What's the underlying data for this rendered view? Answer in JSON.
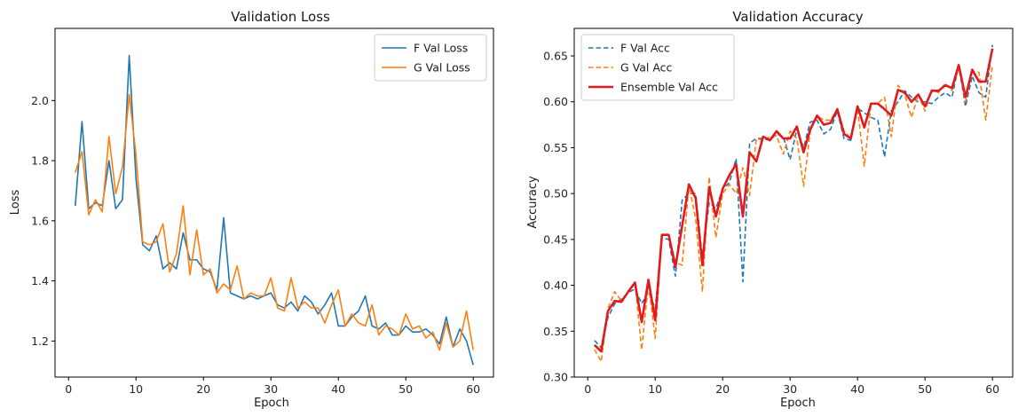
{
  "chart_data": [
    {
      "type": "line",
      "title": "Validation Loss",
      "xlabel": "Epoch",
      "ylabel": "Loss",
      "xlim": [
        -2,
        63
      ],
      "ylim": [
        1.08,
        2.24
      ],
      "xticks": [
        0,
        10,
        20,
        30,
        40,
        50,
        60
      ],
      "yticks": [
        1.2,
        1.4,
        1.6,
        1.8,
        2.0
      ],
      "ytick_decimals": 1,
      "grid": false,
      "legend": "top-right",
      "x": [
        1,
        2,
        3,
        4,
        5,
        6,
        7,
        8,
        9,
        10,
        11,
        12,
        13,
        14,
        15,
        16,
        17,
        18,
        19,
        20,
        21,
        22,
        23,
        24,
        25,
        26,
        27,
        28,
        29,
        30,
        31,
        32,
        33,
        34,
        35,
        36,
        37,
        38,
        39,
        40,
        41,
        42,
        43,
        44,
        45,
        46,
        47,
        48,
        49,
        50,
        51,
        52,
        53,
        54,
        55,
        56,
        57,
        58,
        59,
        60
      ],
      "series": [
        {
          "name": "F Val Loss",
          "color": "#1f77b4",
          "style": "solid",
          "width": 1.6,
          "values": [
            1.65,
            1.93,
            1.64,
            1.66,
            1.65,
            1.8,
            1.64,
            1.67,
            2.15,
            1.74,
            1.52,
            1.5,
            1.55,
            1.44,
            1.46,
            1.44,
            1.56,
            1.47,
            1.47,
            1.44,
            1.43,
            1.37,
            1.61,
            1.36,
            1.35,
            1.34,
            1.35,
            1.34,
            1.35,
            1.36,
            1.32,
            1.31,
            1.33,
            1.3,
            1.35,
            1.33,
            1.29,
            1.32,
            1.36,
            1.25,
            1.25,
            1.28,
            1.3,
            1.35,
            1.25,
            1.24,
            1.26,
            1.22,
            1.22,
            1.25,
            1.23,
            1.23,
            1.24,
            1.22,
            1.19,
            1.28,
            1.18,
            1.24,
            1.2,
            1.12
          ]
        },
        {
          "name": "G Val Loss",
          "color": "#ff7f0e",
          "style": "solid",
          "width": 1.6,
          "values": [
            1.76,
            1.83,
            1.62,
            1.67,
            1.63,
            1.88,
            1.69,
            1.78,
            2.02,
            1.82,
            1.53,
            1.52,
            1.53,
            1.59,
            1.43,
            1.49,
            1.65,
            1.42,
            1.57,
            1.42,
            1.44,
            1.36,
            1.39,
            1.37,
            1.45,
            1.34,
            1.36,
            1.35,
            1.35,
            1.41,
            1.31,
            1.3,
            1.41,
            1.31,
            1.33,
            1.31,
            1.31,
            1.26,
            1.32,
            1.37,
            1.25,
            1.29,
            1.26,
            1.25,
            1.32,
            1.22,
            1.25,
            1.24,
            1.22,
            1.29,
            1.24,
            1.25,
            1.21,
            1.23,
            1.17,
            1.26,
            1.18,
            1.2,
            1.3,
            1.17
          ]
        }
      ]
    },
    {
      "type": "line",
      "title": "Validation Accuracy",
      "xlabel": "Epoch",
      "ylabel": "Accuracy",
      "xlim": [
        -2,
        63
      ],
      "ylim": [
        0.3,
        0.68
      ],
      "xticks": [
        0,
        10,
        20,
        30,
        40,
        50,
        60
      ],
      "yticks": [
        0.3,
        0.35,
        0.4,
        0.45,
        0.5,
        0.55,
        0.6,
        0.65
      ],
      "ytick_decimals": 2,
      "grid": false,
      "legend": "top-left",
      "x": [
        1,
        2,
        3,
        4,
        5,
        6,
        7,
        8,
        9,
        10,
        11,
        12,
        13,
        14,
        15,
        16,
        17,
        18,
        19,
        20,
        21,
        22,
        23,
        24,
        25,
        26,
        27,
        28,
        29,
        30,
        31,
        32,
        33,
        34,
        35,
        36,
        37,
        38,
        39,
        40,
        41,
        42,
        43,
        44,
        45,
        46,
        47,
        48,
        49,
        50,
        51,
        52,
        53,
        54,
        55,
        56,
        57,
        58,
        59,
        60
      ],
      "series": [
        {
          "name": "F Val Acc",
          "color": "#1f77b4",
          "style": "dashed",
          "width": 1.6,
          "values": [
            0.34,
            0.332,
            0.365,
            0.38,
            0.385,
            0.392,
            0.396,
            0.38,
            0.393,
            0.375,
            0.452,
            0.45,
            0.41,
            0.493,
            0.5,
            0.5,
            0.43,
            0.49,
            0.484,
            0.505,
            0.512,
            0.538,
            0.404,
            0.555,
            0.56,
            0.56,
            0.558,
            0.565,
            0.562,
            0.537,
            0.57,
            0.55,
            0.578,
            0.58,
            0.565,
            0.57,
            0.59,
            0.56,
            0.558,
            0.593,
            0.588,
            0.583,
            0.58,
            0.54,
            0.59,
            0.6,
            0.612,
            0.605,
            0.6,
            0.6,
            0.598,
            0.605,
            0.61,
            0.605,
            0.64,
            0.595,
            0.628,
            0.61,
            0.605,
            0.662
          ]
        },
        {
          "name": "G Val Acc",
          "color": "#ff7f0e",
          "style": "dashed",
          "width": 1.6,
          "values": [
            0.33,
            0.317,
            0.375,
            0.393,
            0.383,
            0.393,
            0.403,
            0.33,
            0.403,
            0.342,
            0.455,
            0.455,
            0.425,
            0.422,
            0.51,
            0.472,
            0.393,
            0.518,
            0.452,
            0.5,
            0.51,
            0.5,
            0.528,
            0.498,
            0.56,
            0.558,
            0.562,
            0.563,
            0.543,
            0.568,
            0.56,
            0.508,
            0.568,
            0.585,
            0.58,
            0.58,
            0.592,
            0.568,
            0.56,
            0.593,
            0.53,
            0.598,
            0.598,
            0.605,
            0.562,
            0.618,
            0.608,
            0.583,
            0.608,
            0.59,
            0.613,
            0.61,
            0.62,
            0.612,
            0.638,
            0.6,
            0.633,
            0.632,
            0.58,
            0.64
          ]
        },
        {
          "name": "Ensemble Val Acc",
          "color": "#e31a1c",
          "style": "solid",
          "width": 2.6,
          "values": [
            0.335,
            0.328,
            0.372,
            0.383,
            0.382,
            0.393,
            0.403,
            0.36,
            0.406,
            0.362,
            0.455,
            0.455,
            0.42,
            0.465,
            0.51,
            0.495,
            0.422,
            0.507,
            0.475,
            0.505,
            0.52,
            0.532,
            0.475,
            0.545,
            0.535,
            0.562,
            0.558,
            0.568,
            0.56,
            0.56,
            0.573,
            0.545,
            0.57,
            0.585,
            0.575,
            0.577,
            0.592,
            0.565,
            0.56,
            0.595,
            0.572,
            0.598,
            0.598,
            0.592,
            0.585,
            0.613,
            0.61,
            0.6,
            0.608,
            0.595,
            0.612,
            0.612,
            0.618,
            0.615,
            0.64,
            0.605,
            0.635,
            0.622,
            0.622,
            0.658
          ]
        }
      ]
    }
  ]
}
